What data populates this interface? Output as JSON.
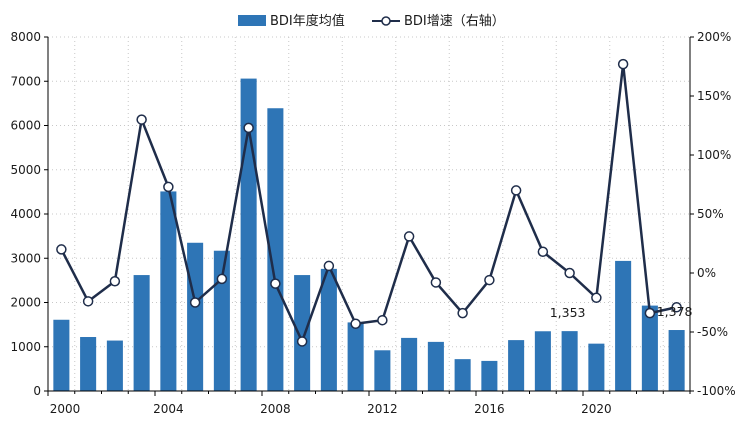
{
  "legend": {
    "bar_label": "BDI年度均值",
    "line_label": "BDI增速（右轴）"
  },
  "colors": {
    "bar": "#2E75B6",
    "line": "#1F2D4A",
    "marker_fill": "#ffffff",
    "grid": "#c8c8c8"
  },
  "chart_data": {
    "type": "bar",
    "x": [
      2000,
      2001,
      2002,
      2003,
      2004,
      2005,
      2006,
      2007,
      2008,
      2009,
      2010,
      2011,
      2012,
      2013,
      2014,
      2015,
      2016,
      2017,
      2018,
      2019,
      2020,
      2021,
      2022,
      2023
    ],
    "series": [
      {
        "name": "BDI年度均值",
        "type": "bar",
        "axis": "left",
        "values": [
          1610,
          1220,
          1140,
          2620,
          4510,
          3350,
          3170,
          7060,
          6390,
          2620,
          2760,
          1550,
          920,
          1200,
          1110,
          720,
          680,
          1150,
          1350,
          1353,
          1070,
          2940,
          1930,
          1378
        ]
      },
      {
        "name": "BDI增速（右轴）",
        "type": "line",
        "axis": "right",
        "unit": "%",
        "values": [
          20,
          -24,
          -7,
          130,
          73,
          -25,
          -5,
          123,
          -9,
          -58,
          6,
          -43,
          -40,
          31,
          -8,
          -34,
          -6,
          70,
          18,
          0,
          -21,
          177,
          -34,
          -29
        ]
      }
    ],
    "y_left": {
      "min": 0,
      "max": 8000,
      "ticks": [
        0,
        1000,
        2000,
        3000,
        4000,
        5000,
        6000,
        7000,
        8000
      ]
    },
    "y_right": {
      "min": -100,
      "max": 200,
      "ticks": [
        -100,
        -50,
        0,
        50,
        100,
        150,
        200
      ],
      "tick_labels": [
        "-100%",
        "-50%",
        "0%",
        "50%",
        "100%",
        "150%",
        "200%"
      ]
    },
    "x_tick_labels": [
      "2000",
      "2004",
      "2008",
      "2012",
      "2016",
      "2020"
    ],
    "x_tick_years": [
      2000,
      2004,
      2008,
      2012,
      2016,
      2020
    ],
    "annotations": [
      {
        "year": 2019,
        "text": "1,353"
      },
      {
        "year": 2023,
        "text": "1,378"
      }
    ],
    "legend_position": "top-center",
    "grid": true
  }
}
